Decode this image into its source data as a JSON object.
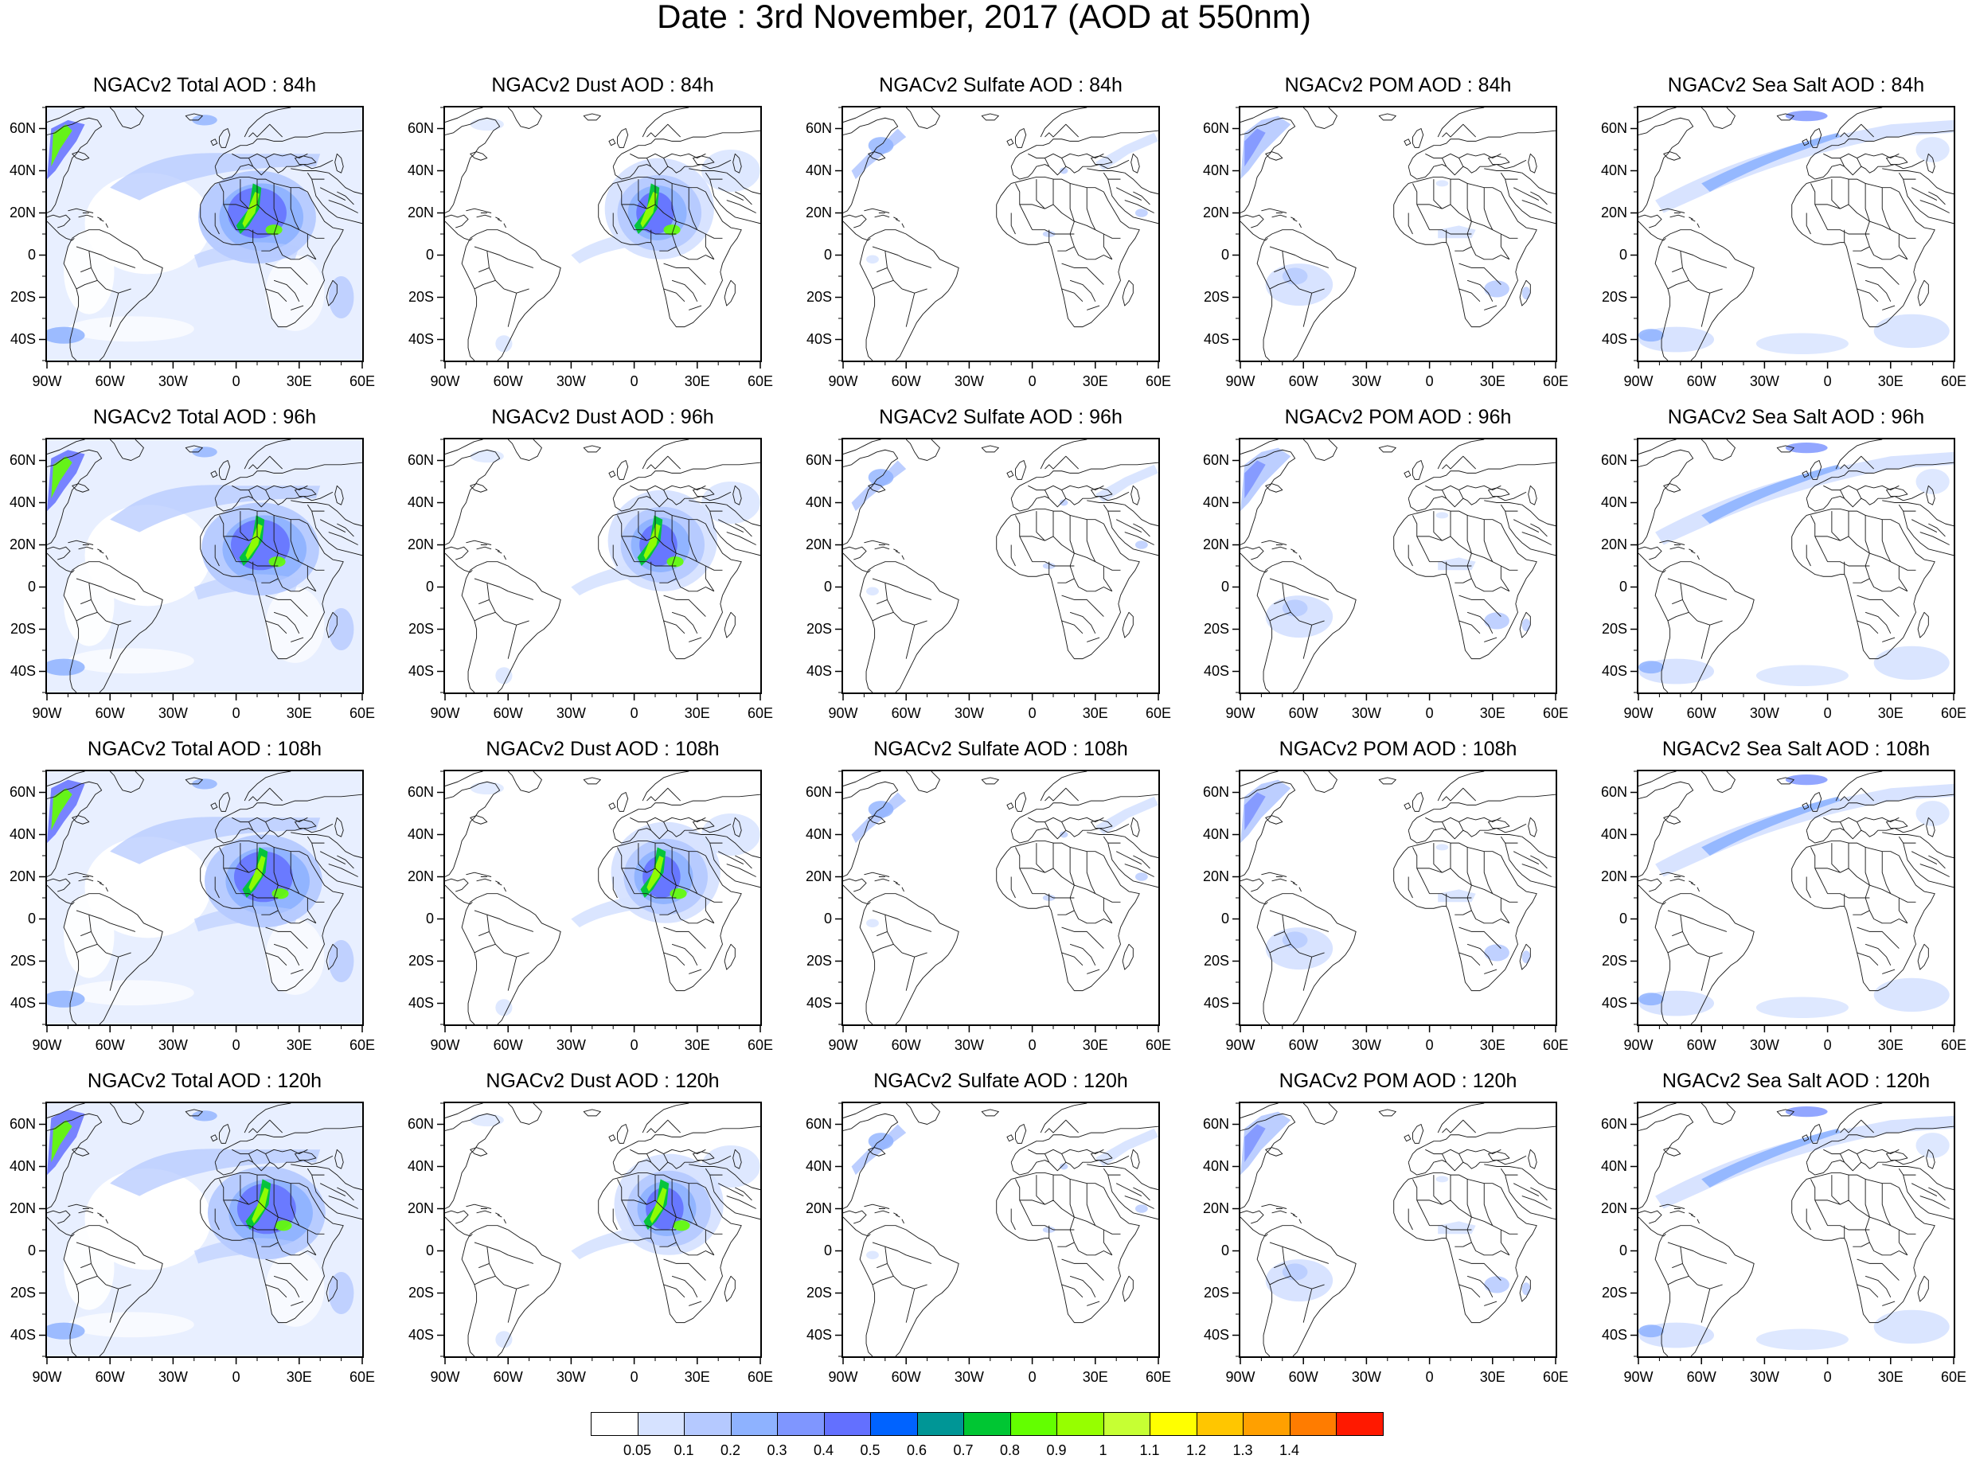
{
  "title": "Date : 3rd November, 2017 (AOD at 550nm)",
  "lon_ticks": [
    "90W",
    "60W",
    "30W",
    "0",
    "30E",
    "60E"
  ],
  "lat_ticks": [
    "60N",
    "40N",
    "20N",
    "0",
    "20S",
    "40S"
  ],
  "panels": [
    {
      "title": "NGACv2 Total AOD : 84h",
      "species": "total",
      "hour": 84
    },
    {
      "title": "NGACv2 Dust AOD : 84h",
      "species": "dust",
      "hour": 84
    },
    {
      "title": "NGACv2 Sulfate AOD : 84h",
      "species": "sulfate",
      "hour": 84
    },
    {
      "title": "NGACv2 POM AOD : 84h",
      "species": "pom",
      "hour": 84
    },
    {
      "title": "NGACv2 Sea Salt AOD : 84h",
      "species": "seasalt",
      "hour": 84
    },
    {
      "title": "NGACv2 Total AOD : 96h",
      "species": "total",
      "hour": 96
    },
    {
      "title": "NGACv2 Dust AOD : 96h",
      "species": "dust",
      "hour": 96
    },
    {
      "title": "NGACv2 Sulfate AOD : 96h",
      "species": "sulfate",
      "hour": 96
    },
    {
      "title": "NGACv2 POM AOD : 96h",
      "species": "pom",
      "hour": 96
    },
    {
      "title": "NGACv2 Sea Salt AOD : 96h",
      "species": "seasalt",
      "hour": 96
    },
    {
      "title": "NGACv2 Total AOD : 108h",
      "species": "total",
      "hour": 108
    },
    {
      "title": "NGACv2 Dust AOD : 108h",
      "species": "dust",
      "hour": 108
    },
    {
      "title": "NGACv2 Sulfate AOD : 108h",
      "species": "sulfate",
      "hour": 108
    },
    {
      "title": "NGACv2 POM AOD : 108h",
      "species": "pom",
      "hour": 108
    },
    {
      "title": "NGACv2 Sea Salt AOD : 108h",
      "species": "seasalt",
      "hour": 108
    },
    {
      "title": "NGACv2 Total AOD : 120h",
      "species": "total",
      "hour": 120
    },
    {
      "title": "NGACv2 Dust AOD : 120h",
      "species": "dust",
      "hour": 120
    },
    {
      "title": "NGACv2 Sulfate AOD : 120h",
      "species": "sulfate",
      "hour": 120
    },
    {
      "title": "NGACv2 POM AOD : 120h",
      "species": "pom",
      "hour": 120
    },
    {
      "title": "NGACv2 Sea Salt  AOD : 120h",
      "species": "seasalt",
      "hour": 120
    }
  ],
  "colorbar": {
    "labels": [
      "0.05",
      "0.1",
      "0.2",
      "0.3",
      "0.4",
      "0.5",
      "0.6",
      "0.7",
      "0.8",
      "0.9",
      "1",
      "1.1",
      "1.2",
      "1.3",
      "1.4"
    ],
    "colors": [
      "#ffffff",
      "#d6e2ff",
      "#b5c9ff",
      "#8eb2ff",
      "#7f96ff",
      "#6370ff",
      "#0063ff",
      "#009696",
      "#00c633",
      "#63ff00",
      "#96ff00",
      "#c6ff33",
      "#ffff00",
      "#ffc600",
      "#ffa000",
      "#ff7c00",
      "#ff1900"
    ]
  },
  "shading_colors": {
    "c1": "#d6e2ff",
    "c2": "#b5c9ff",
    "c3": "#8eb2ff",
    "c4": "#7f96ff",
    "c5": "#6370ff",
    "c6": "#0063ff",
    "c8": "#00c633",
    "c9": "#63ff00",
    "c10": "#96ff00"
  }
}
